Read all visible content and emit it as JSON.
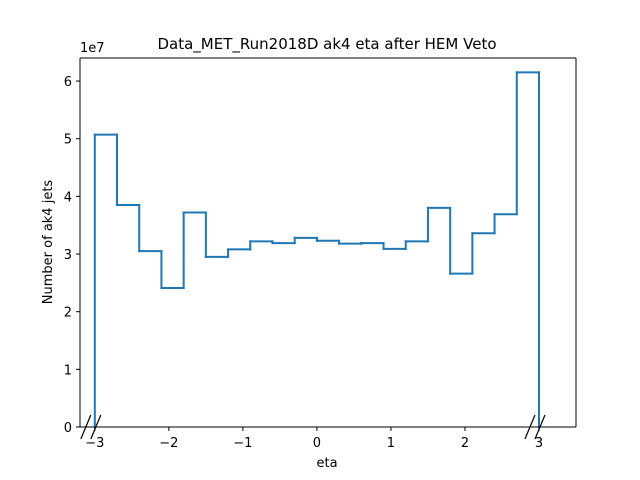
{
  "chart_data": {
    "type": "step",
    "title": "Data_MET_Run2018D ak4 eta after HEM Veto",
    "xlabel": "eta",
    "ylabel": "Number of ak4 jets",
    "y_offset_label": "1e7",
    "xlim": [
      -3.2,
      3.5
    ],
    "ylim": [
      0,
      6.4
    ],
    "y_scale": 10000000.0,
    "bin_edges": [
      -3.0,
      -2.7,
      -2.4,
      -2.1,
      -1.8,
      -1.5,
      -1.2,
      -0.9,
      -0.6,
      -0.3,
      0.0,
      0.3,
      0.6,
      0.9,
      1.2,
      1.5,
      1.8,
      2.1,
      2.4,
      2.7,
      3.0
    ],
    "values": [
      5.07,
      3.85,
      3.05,
      2.41,
      3.72,
      2.95,
      3.08,
      3.22,
      3.19,
      3.28,
      3.23,
      3.18,
      3.19,
      3.09,
      3.22,
      3.8,
      2.66,
      3.36,
      3.69,
      6.15
    ],
    "x_ticks": [
      -3,
      -2,
      -1,
      0,
      1,
      2,
      3
    ],
    "x_tick_labels": [
      "−3",
      "−2",
      "−1",
      "0",
      "1",
      "2",
      "3"
    ],
    "y_ticks": [
      0,
      1,
      2,
      3,
      4,
      5,
      6
    ],
    "y_tick_labels": [
      "0",
      "1",
      "2",
      "3",
      "4",
      "5",
      "6"
    ],
    "line_color": "#1f77b4",
    "grid": false,
    "legend": "none"
  }
}
